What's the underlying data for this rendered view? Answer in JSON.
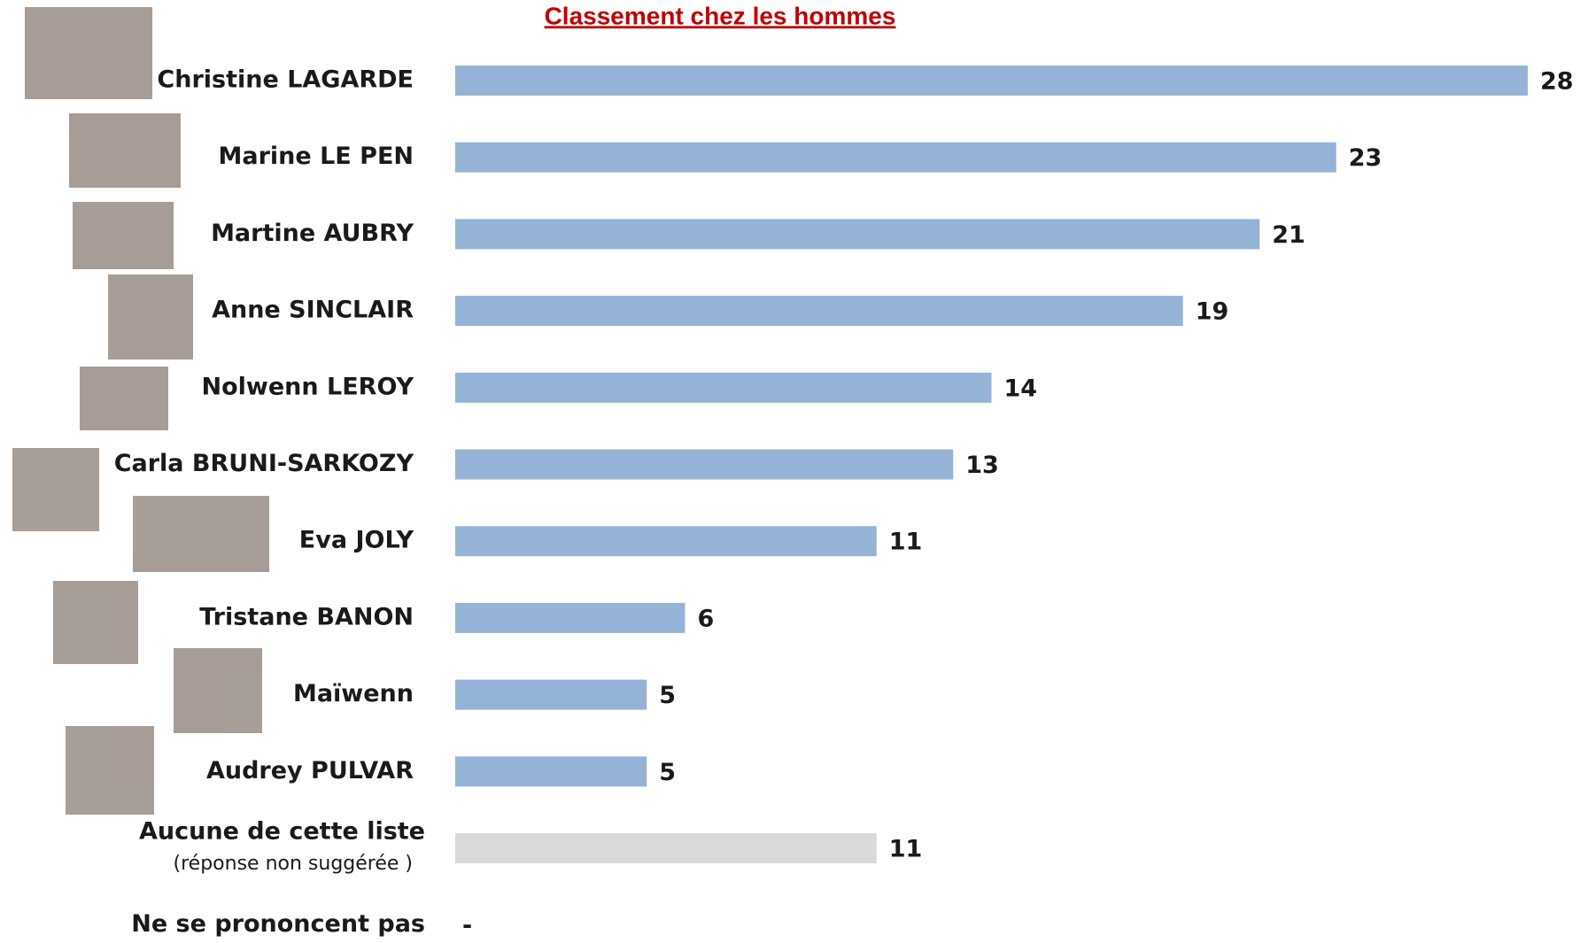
{
  "chart_data": {
    "type": "bar",
    "orientation": "horizontal",
    "title": "Classement chez les hommes",
    "categories": [
      "Christine LAGARDE",
      "Marine LE PEN",
      "Martine AUBRY",
      "Anne SINCLAIR",
      "Nolwenn LEROY",
      "Carla BRUNI-SARKOZY",
      "Eva JOLY",
      "Tristane BANON",
      "Maïwenn",
      "Audrey PULVAR",
      "Aucune de cette liste",
      "Ne se prononcent pas"
    ],
    "sublabels": [
      null,
      null,
      null,
      null,
      null,
      null,
      null,
      null,
      null,
      null,
      "(réponse non suggérée )",
      null
    ],
    "values": [
      28,
      23,
      21,
      19,
      14,
      13,
      11,
      6,
      5,
      5,
      11,
      null
    ],
    "value_labels": [
      "28",
      "23",
      "21",
      "19",
      "14",
      "13",
      "11",
      "6",
      "5",
      "5",
      "11",
      "-"
    ],
    "colors": [
      "#95b3d7",
      "#95b3d7",
      "#95b3d7",
      "#95b3d7",
      "#95b3d7",
      "#95b3d7",
      "#95b3d7",
      "#95b3d7",
      "#95b3d7",
      "#95b3d7",
      "#d9d9d9",
      null
    ]
  }
}
